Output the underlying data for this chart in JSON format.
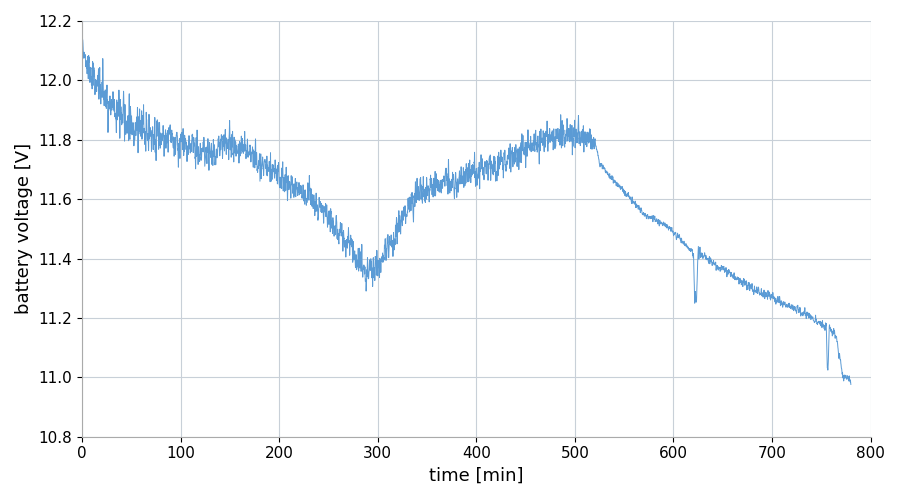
{
  "xlabel": "time [min]",
  "ylabel": "battery voltage [V]",
  "xlim": [
    0,
    800
  ],
  "ylim": [
    10.8,
    12.2
  ],
  "xticks": [
    0,
    100,
    200,
    300,
    400,
    500,
    600,
    700,
    800
  ],
  "yticks": [
    10.8,
    11.0,
    11.2,
    11.4,
    11.6,
    11.8,
    12.0,
    12.2
  ],
  "line_color": "#5B9BD5",
  "line_width": 0.7,
  "grid_color": "#C8D0D8",
  "bg_color": "#FFFFFF",
  "fig_bg_color": "#FFFFFF",
  "label_fontsize": 13,
  "tick_fontsize": 11,
  "seed": 42,
  "n_points": 7800
}
